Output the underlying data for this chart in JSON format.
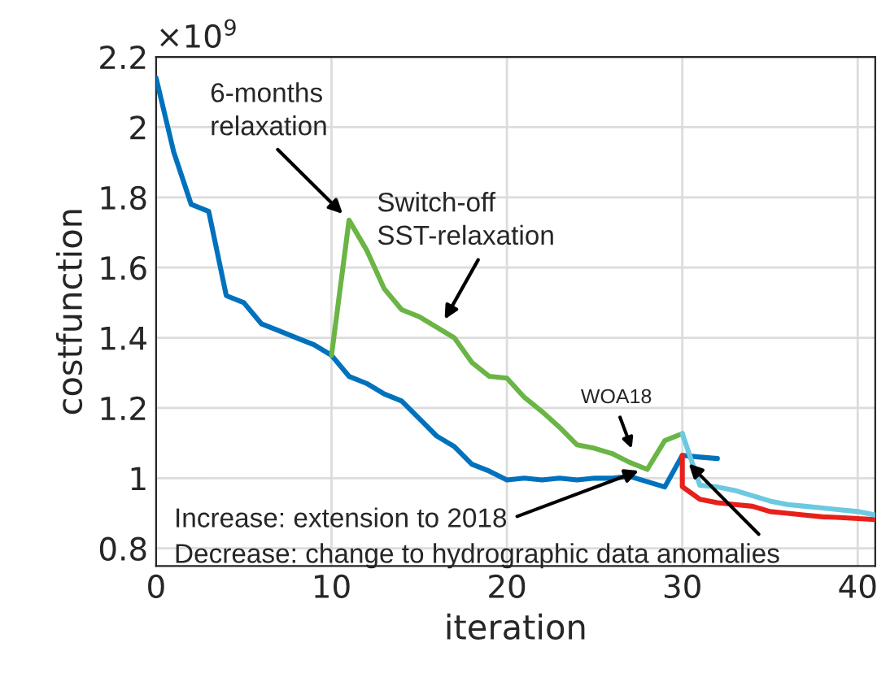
{
  "chart_data": {
    "type": "line",
    "xlabel": "iteration",
    "ylabel": "costfunction",
    "xlim": [
      0,
      41
    ],
    "xticks": [
      0,
      10,
      20,
      30,
      40
    ],
    "ylim": [
      0.75,
      2.2
    ],
    "yticks": [
      0.8,
      1,
      1.2,
      1.4,
      1.6,
      1.8,
      2,
      2.2
    ],
    "grid": true,
    "marker": "none",
    "line_style": "solid",
    "series": [
      {
        "color": "#0072bd",
        "x": [
          0,
          1,
          2,
          3,
          4,
          5,
          6,
          7,
          8,
          9,
          10,
          11,
          12,
          13,
          14,
          15,
          16,
          17,
          18,
          19,
          20,
          21,
          22,
          23,
          24,
          25,
          26,
          27,
          28,
          29,
          30,
          31,
          32
        ],
        "values": [
          2.14,
          1.93,
          1.78,
          1.76,
          1.52,
          1.5,
          1.44,
          1.42,
          1.4,
          1.38,
          1.35,
          1.29,
          1.27,
          1.24,
          1.22,
          1.17,
          1.12,
          1.09,
          1.04,
          1.02,
          0.995,
          1.0,
          0.995,
          1.0,
          0.995,
          1.0,
          1.0,
          1.005,
          0.99,
          0.975,
          1.065,
          1.06,
          1.056
        ]
      },
      {
        "color": "#6ab545",
        "x": [
          10,
          11,
          12,
          13,
          14,
          15,
          16,
          17,
          18,
          19,
          20,
          21,
          22,
          23,
          24,
          25,
          26,
          27,
          28,
          29,
          30
        ],
        "values": [
          1.35,
          1.735,
          1.65,
          1.54,
          1.48,
          1.46,
          1.43,
          1.4,
          1.33,
          1.29,
          1.285,
          1.23,
          1.19,
          1.145,
          1.095,
          1.085,
          1.07,
          1.045,
          1.025,
          1.107,
          1.127
        ]
      },
      {
        "color": "#e8201a",
        "x": [
          30,
          30,
          31,
          32,
          33,
          34,
          35,
          36,
          37,
          38,
          39,
          40,
          41
        ],
        "values": [
          1.065,
          0.976,
          0.94,
          0.93,
          0.925,
          0.92,
          0.905,
          0.9,
          0.895,
          0.89,
          0.888,
          0.885,
          0.882
        ]
      },
      {
        "color": "#6cc9e0",
        "x": [
          30,
          31,
          32,
          33,
          34,
          35,
          36,
          37,
          38,
          39,
          40,
          41
        ],
        "values": [
          1.127,
          0.98,
          0.975,
          0.965,
          0.95,
          0.935,
          0.925,
          0.92,
          0.915,
          0.91,
          0.905,
          0.895
        ]
      }
    ],
    "annotations": [
      "×10$^{9}$",
      {
        "text": "6-months\nrelaxation",
        "x": 11,
        "y": 1.735
      },
      {
        "text": "Switch-off\nSST-relaxation",
        "x": 16.2,
        "y": 1.43
      },
      {
        "text": "WOA18",
        "x": 27.3,
        "y": 1.06
      },
      {
        "text": "Increase: extension to 2018",
        "x": 28,
        "y": 1.03
      },
      {
        "text": "Decrease: change to hydrographic data anomalies",
        "x": 30,
        "y": 1.06
      }
    ]
  }
}
